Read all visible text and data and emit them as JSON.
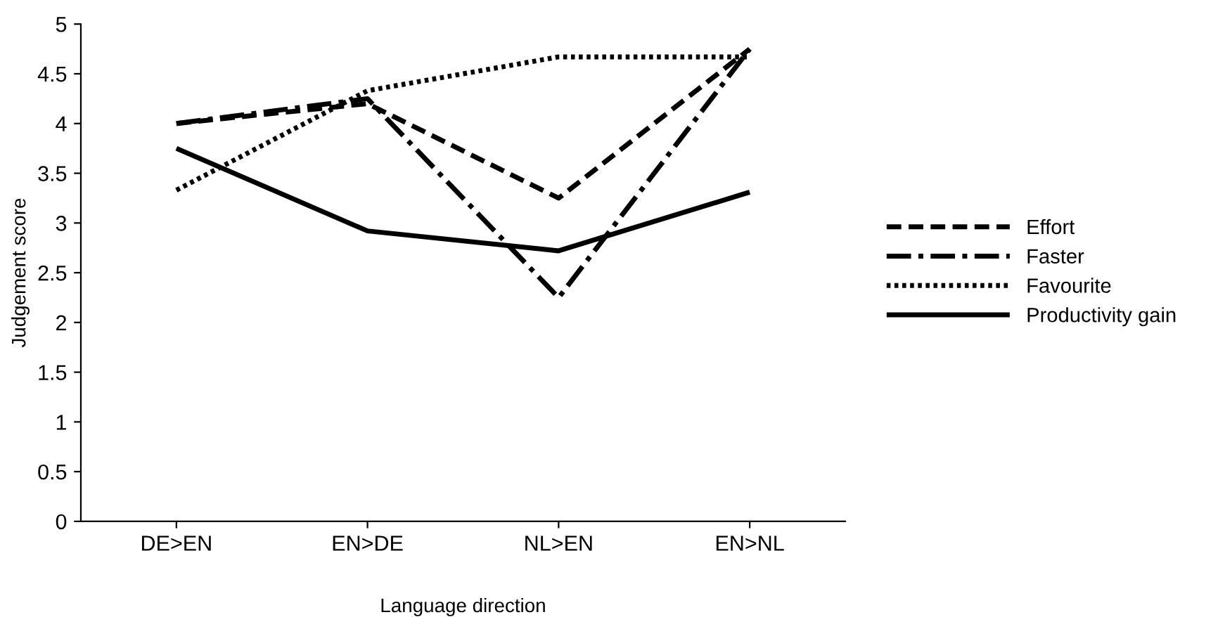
{
  "chart_data": {
    "type": "line",
    "xlabel": "Language direction",
    "ylabel": "Judgement score",
    "categories": [
      "DE>EN",
      "EN>DE",
      "NL>EN",
      "EN>NL"
    ],
    "series": [
      {
        "name": "Effort",
        "color": "#000000",
        "line_style": "dashed",
        "values": [
          4.0,
          4.2,
          3.25,
          4.75
        ]
      },
      {
        "name": "Faster",
        "color": "#000000",
        "line_style": "dashdot",
        "values": [
          4.0,
          4.25,
          2.25,
          4.75
        ]
      },
      {
        "name": "Favourite",
        "color": "#000000",
        "line_style": "dotted",
        "values": [
          3.33,
          4.33,
          4.67,
          4.67
        ]
      },
      {
        "name": "Productivity gain",
        "color": "#000000",
        "line_style": "solid",
        "values": [
          3.75,
          2.92,
          2.72,
          3.31
        ]
      }
    ],
    "ylim": [
      0,
      5
    ],
    "yticks": [
      0,
      0.5,
      1,
      1.5,
      2,
      2.5,
      3,
      3.5,
      4,
      4.5,
      5
    ],
    "grid": false,
    "legend": "right",
    "marker": "none"
  }
}
